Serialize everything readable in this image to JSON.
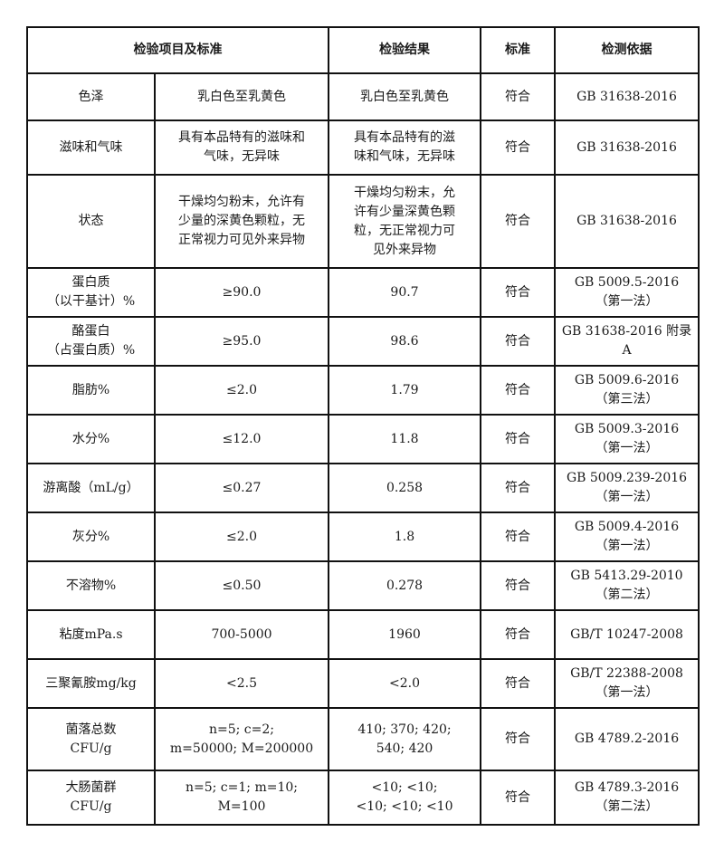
{
  "headers": {
    "item_standard": "检验项目及标准",
    "result": "检验结果",
    "standard": "标准",
    "basis": "检测依据"
  },
  "rows": [
    {
      "item": "色泽",
      "requirement": "乳白色至乳黄色",
      "result": "乳白色至乳黄色",
      "verdict": "符合",
      "basis": "GB 31638-2016"
    },
    {
      "item": "滋味和气味",
      "requirement": "具有本品特有的滋味和\n气味，无异味",
      "result": "具有本品特有的滋\n味和气味，无异味",
      "verdict": "符合",
      "basis": "GB 31638-2016"
    },
    {
      "item": "状态",
      "requirement": "干燥均匀粉末，允许有\n少量的深黄色颗粒，无\n正常视力可见外来异物",
      "result": "干燥均匀粉末，允\n许有少量深黄色颗\n粒，无正常视力可\n见外来异物",
      "verdict": "符合",
      "basis": "GB 31638-2016"
    },
    {
      "item": "蛋白质\n（以干基计）%",
      "requirement": "≥90.0",
      "result": "90.7",
      "verdict": "符合",
      "basis": "GB 5009.5-2016\n（第一法）"
    },
    {
      "item": "酪蛋白\n（占蛋白质）%",
      "requirement": "≥95.0",
      "result": "98.6",
      "verdict": "符合",
      "basis": "GB 31638-2016 附录A"
    },
    {
      "item": "脂肪%",
      "requirement": "≤2.0",
      "result": "1.79",
      "verdict": "符合",
      "basis": "GB 5009.6-2016\n（第三法）"
    },
    {
      "item": "水分%",
      "requirement": "≤12.0",
      "result": "11.8",
      "verdict": "符合",
      "basis": "GB 5009.3-2016\n（第一法）"
    },
    {
      "item": "游离酸（mL/g）",
      "requirement": "≤0.27",
      "result": "0.258",
      "verdict": "符合",
      "basis": "GB 5009.239-2016\n（第一法）"
    },
    {
      "item": "灰分%",
      "requirement": "≤2.0",
      "result": "1.8",
      "verdict": "符合",
      "basis": "GB 5009.4-2016\n（第一法）"
    },
    {
      "item": "不溶物%",
      "requirement": "≤0.50",
      "result": "0.278",
      "verdict": "符合",
      "basis": "GB 5413.29-2010\n（第二法）"
    },
    {
      "item": "粘度mPa.s",
      "requirement": "700-5000",
      "result": "1960",
      "verdict": "符合",
      "basis": "GB/T 10247-2008"
    },
    {
      "item": "三聚氰胺mg/kg",
      "requirement": "<2.5",
      "result": "<2.0",
      "verdict": "符合",
      "basis": "GB/T 22388-2008\n（第一法）"
    },
    {
      "item": "菌落总数\nCFU/g",
      "requirement": "n=5; c=2;\nm=50000; M=200000",
      "result": "410; 370; 420;\n540; 420",
      "verdict": "符合",
      "basis": "GB 4789.2-2016"
    },
    {
      "item": "大肠菌群\nCFU/g",
      "requirement": "n=5; c=1; m=10;\nM=100",
      "result": "<10; <10;\n<10; <10; <10",
      "verdict": "符合",
      "basis": "GB 4789.3-2016\n（第二法）"
    }
  ]
}
